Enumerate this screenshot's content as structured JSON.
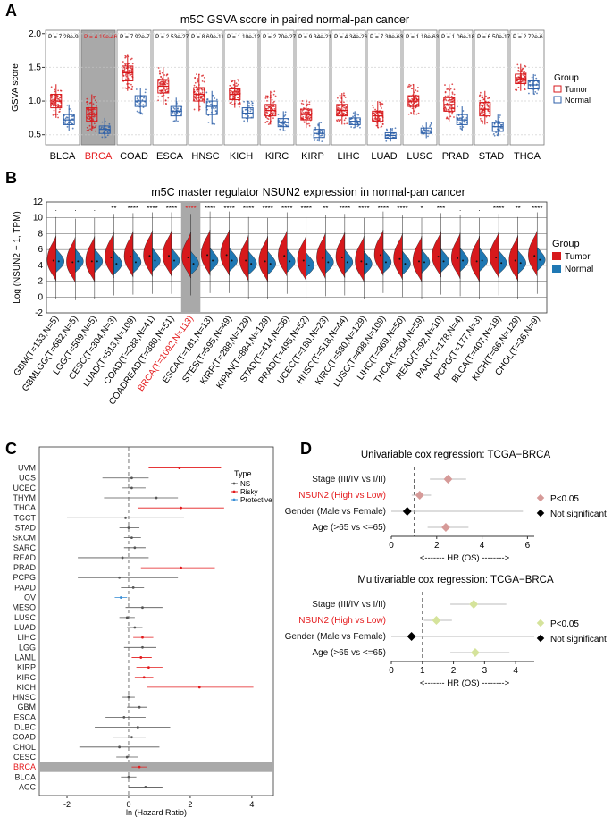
{
  "colors": {
    "tumor": "#d7191c",
    "normal": "#2c5fa8",
    "normal_fill": "#1f78b4",
    "highlight": "#a9a9a9",
    "risky": "#e31a1c",
    "protective": "#3b8fd6",
    "ns": "#555555",
    "sig": "#d69a98",
    "sig2": "#d5e39b",
    "notsig": "#000000",
    "red_text": "#e41a1c"
  },
  "panel_a": {
    "letter": "A",
    "title": "m5C GSVA score in paired normal-pan cancer",
    "ylabel": "GSVA score",
    "yticks": [
      "2.0",
      "1.5",
      "1.0",
      "0.5"
    ],
    "legend_title": "Group",
    "legend_items": [
      "Tumor",
      "Normal"
    ],
    "highlight": "BRCA",
    "groups": [
      {
        "label": "BLCA",
        "p": "P = 7.28e-9",
        "tumor": [
          0.75,
          0.9,
          1.0,
          1.1,
          1.25
        ],
        "normal": [
          0.55,
          0.65,
          0.72,
          0.8,
          0.95
        ]
      },
      {
        "label": "BRCA",
        "p": "P = 4.19e-46",
        "tumor": [
          0.55,
          0.7,
          0.8,
          0.9,
          1.1
        ],
        "normal": [
          0.45,
          0.52,
          0.58,
          0.63,
          0.75
        ]
      },
      {
        "label": "COAD",
        "p": "P = 7.92e-7",
        "tumor": [
          1.15,
          1.3,
          1.42,
          1.52,
          1.7
        ],
        "normal": [
          0.8,
          0.92,
          1.0,
          1.08,
          1.2
        ]
      },
      {
        "label": "ESCA",
        "p": "P = 2.53e-27",
        "tumor": [
          0.95,
          1.12,
          1.22,
          1.32,
          1.5
        ],
        "normal": [
          0.7,
          0.78,
          0.85,
          0.92,
          1.05
        ]
      },
      {
        "label": "HNSC",
        "p": "P = 8.69e-11",
        "tumor": [
          0.85,
          1.0,
          1.1,
          1.2,
          1.4
        ],
        "normal": [
          0.65,
          0.8,
          0.92,
          1.0,
          1.15
        ]
      },
      {
        "label": "KICH",
        "p": "P = 1.10e-12",
        "tumor": [
          0.9,
          1.02,
          1.1,
          1.18,
          1.32
        ],
        "normal": [
          0.68,
          0.75,
          0.82,
          0.9,
          1.0
        ]
      },
      {
        "label": "KIRC",
        "p": "P = 2.70e-27",
        "tumor": [
          0.65,
          0.78,
          0.86,
          0.95,
          1.15
        ],
        "normal": [
          0.55,
          0.62,
          0.68,
          0.74,
          0.85
        ]
      },
      {
        "label": "KIRP",
        "p": "P = 9.34e-21",
        "tumor": [
          0.6,
          0.72,
          0.8,
          0.88,
          1.02
        ],
        "normal": [
          0.4,
          0.46,
          0.52,
          0.58,
          0.68
        ]
      },
      {
        "label": "LIHC",
        "p": "P = 4.34e-26",
        "tumor": [
          0.65,
          0.78,
          0.86,
          0.95,
          1.12
        ],
        "normal": [
          0.6,
          0.65,
          0.7,
          0.75,
          0.85
        ]
      },
      {
        "label": "LUAD",
        "p": "P = 7.30e-63",
        "tumor": [
          0.6,
          0.7,
          0.78,
          0.85,
          1.0
        ],
        "normal": [
          0.4,
          0.45,
          0.49,
          0.53,
          0.6
        ]
      },
      {
        "label": "LUSC",
        "p": "P = 1.18e-63",
        "tumor": [
          0.8,
          0.92,
          1.0,
          1.08,
          1.25
        ],
        "normal": [
          0.45,
          0.52,
          0.56,
          0.6,
          0.68
        ]
      },
      {
        "label": "PRAD",
        "p": "P = 1.06e-18",
        "tumor": [
          0.7,
          0.85,
          0.95,
          1.05,
          1.25
        ],
        "normal": [
          0.55,
          0.65,
          0.72,
          0.8,
          0.92
        ]
      },
      {
        "label": "STAD",
        "p": "P = 6.50e-17",
        "tumor": [
          0.65,
          0.78,
          0.88,
          0.98,
          1.15
        ],
        "normal": [
          0.48,
          0.55,
          0.62,
          0.68,
          0.8
        ]
      },
      {
        "label": "THCA",
        "p": "P = 2.72e-6",
        "tumor": [
          1.15,
          1.26,
          1.33,
          1.4,
          1.55
        ],
        "normal": [
          1.1,
          1.18,
          1.24,
          1.3,
          1.4
        ]
      }
    ]
  },
  "panel_b": {
    "letter": "B",
    "title": "m5C master regulator NSUN2 expression in normal-pan cancer",
    "ylabel": "Log (NSUN2 + 1, TPM)",
    "yticks": [
      "12",
      "10",
      "8",
      "6",
      "4",
      "2",
      "0",
      "-2"
    ],
    "legend_title": "Group",
    "legend_items": [
      "Tumor",
      "Normal"
    ],
    "highlight": "BRCA(T=1092,N=113)",
    "groups": [
      {
        "label": "GBM(T=153,N=5)",
        "sig": ".",
        "t": 4.6,
        "n": 4.5
      },
      {
        "label": "GBMLGG(T=662,N=5)",
        "sig": ".",
        "t": 4.4,
        "n": 4.5
      },
      {
        "label": "LGG(T=509,N=5)",
        "sig": ".",
        "t": 4.5,
        "n": 4.5
      },
      {
        "label": "CESC(T=304,N=3)",
        "sig": "**",
        "t": 5.0,
        "n": 4.2
      },
      {
        "label": "LUAD(T=513,N=109)",
        "sig": "****",
        "t": 5.1,
        "n": 4.4
      },
      {
        "label": "COAD(T=288,N=41)",
        "sig": "****",
        "t": 5.2,
        "n": 4.6
      },
      {
        "label": "COADREAD(T=380,N=51)",
        "sig": "****",
        "t": 5.2,
        "n": 4.6
      },
      {
        "label": "BRCA(T=1092,N=113)",
        "sig": "****",
        "t": 5.0,
        "n": 4.2
      },
      {
        "label": "ESCA(T=181,N=13)",
        "sig": "****",
        "t": 5.3,
        "n": 4.6
      },
      {
        "label": "STES(T=595,N=49)",
        "sig": "****",
        "t": 5.3,
        "n": 4.6
      },
      {
        "label": "KIRP(T=288,N=129)",
        "sig": "****",
        "t": 4.6,
        "n": 4.2
      },
      {
        "label": "KIPAN(T=884,N=129)",
        "sig": "****",
        "t": 4.5,
        "n": 4.2
      },
      {
        "label": "STAD(T=414,N=36)",
        "sig": "****",
        "t": 5.2,
        "n": 4.5
      },
      {
        "label": "PRAD(T=495,N=52)",
        "sig": "****",
        "t": 4.6,
        "n": 4.0
      },
      {
        "label": "UCEC(T=180,N=23)",
        "sig": "**",
        "t": 4.9,
        "n": 4.4
      },
      {
        "label": "HNSC(T=518,N=44)",
        "sig": "****",
        "t": 5.0,
        "n": 4.4
      },
      {
        "label": "KIRC(T=530,N=129)",
        "sig": "****",
        "t": 4.5,
        "n": 4.2
      },
      {
        "label": "LUSC(T=498,N=109)",
        "sig": "****",
        "t": 5.3,
        "n": 4.4
      },
      {
        "label": "LIHC(T=369,N=50)",
        "sig": "****",
        "t": 4.8,
        "n": 4.2
      },
      {
        "label": "THCA(T=504,N=59)",
        "sig": "*",
        "t": 4.5,
        "n": 4.4
      },
      {
        "label": "READ(T=92,N=10)",
        "sig": "***",
        "t": 5.1,
        "n": 4.5
      },
      {
        "label": "PAAD(T=178,N=4)",
        "sig": ".",
        "t": 4.9,
        "n": 4.6
      },
      {
        "label": "PCPG(T=177,N=3)",
        "sig": ".",
        "t": 4.5,
        "n": 4.6
      },
      {
        "label": "BLCA(T=407,N=19)",
        "sig": "****",
        "t": 5.0,
        "n": 4.3
      },
      {
        "label": "KICH(T=66,N=129)",
        "sig": "**",
        "t": 4.6,
        "n": 4.3
      },
      {
        "label": "CHOL(T=36,N=9)",
        "sig": "****",
        "t": 5.2,
        "n": 4.7
      }
    ]
  },
  "panel_c": {
    "letter": "C",
    "title": "Association between NSUN2 Expression and OS",
    "xlabel": "ln (Hazard Ratio)",
    "xticks": [
      "-2",
      "0",
      "2",
      "4"
    ],
    "legend_title": "Type",
    "legend_items": [
      "NS",
      "Risky",
      "Protective"
    ],
    "highlight": "BRCA",
    "rows": [
      {
        "label": "UVM",
        "est": 1.65,
        "lo": 0.65,
        "hi": 3.0,
        "type": "Risky"
      },
      {
        "label": "UCS",
        "est": 0.1,
        "lo": -0.85,
        "hi": 0.65,
        "type": "NS"
      },
      {
        "label": "UCEC",
        "est": 0.1,
        "lo": -0.2,
        "hi": 0.55,
        "type": "NS"
      },
      {
        "label": "THYM",
        "est": 0.9,
        "lo": -0.8,
        "hi": 1.6,
        "type": "NS"
      },
      {
        "label": "THCA",
        "est": 1.7,
        "lo": 0.3,
        "hi": 3.1,
        "type": "Risky"
      },
      {
        "label": "TGCT",
        "est": -0.1,
        "lo": -2.0,
        "hi": 1.8,
        "type": "NS"
      },
      {
        "label": "STAD",
        "est": 0.0,
        "lo": -0.3,
        "hi": 0.35,
        "type": "NS"
      },
      {
        "label": "SKCM",
        "est": 0.1,
        "lo": -0.15,
        "hi": 0.4,
        "type": "NS"
      },
      {
        "label": "SARC",
        "est": 0.2,
        "lo": -0.15,
        "hi": 0.55,
        "type": "NS"
      },
      {
        "label": "READ",
        "est": -0.2,
        "lo": -1.65,
        "hi": 0.65,
        "type": "NS"
      },
      {
        "label": "PRAD",
        "est": 1.7,
        "lo": 0.4,
        "hi": 2.8,
        "type": "Risky"
      },
      {
        "label": "PCPG",
        "est": -0.3,
        "lo": -1.65,
        "hi": 1.6,
        "type": "NS"
      },
      {
        "label": "PAAD",
        "est": 0.15,
        "lo": -0.25,
        "hi": 0.5,
        "type": "NS"
      },
      {
        "label": "OV",
        "est": -0.25,
        "lo": -0.45,
        "hi": -0.05,
        "type": "Protective"
      },
      {
        "label": "MESO",
        "est": 0.45,
        "lo": -0.1,
        "hi": 1.1,
        "type": "NS"
      },
      {
        "label": "LUSC",
        "est": -0.05,
        "lo": -0.3,
        "hi": 0.2,
        "type": "NS"
      },
      {
        "label": "LUAD",
        "est": 0.2,
        "lo": -0.05,
        "hi": 0.45,
        "type": "NS"
      },
      {
        "label": "LIHC",
        "est": 0.45,
        "lo": 0.15,
        "hi": 0.8,
        "type": "Risky"
      },
      {
        "label": "LGG",
        "est": 0.45,
        "lo": -0.15,
        "hi": 0.9,
        "type": "NS"
      },
      {
        "label": "LAML",
        "est": 0.4,
        "lo": 0.1,
        "hi": 0.75,
        "type": "Risky"
      },
      {
        "label": "KIRP",
        "est": 0.65,
        "lo": 0.25,
        "hi": 1.1,
        "type": "Risky"
      },
      {
        "label": "KIRC",
        "est": 0.5,
        "lo": 0.2,
        "hi": 0.8,
        "type": "Risky"
      },
      {
        "label": "KICH",
        "est": 2.3,
        "lo": 0.6,
        "hi": 4.05,
        "type": "Risky"
      },
      {
        "label": "HNSC",
        "est": 0.0,
        "lo": -0.2,
        "hi": 0.2,
        "type": "NS"
      },
      {
        "label": "GBM",
        "est": 0.35,
        "lo": -0.05,
        "hi": 0.6,
        "type": "NS"
      },
      {
        "label": "ESCA",
        "est": -0.15,
        "lo": -0.75,
        "hi": 0.55,
        "type": "NS"
      },
      {
        "label": "DLBC",
        "est": 0.3,
        "lo": -1.1,
        "hi": 1.35,
        "type": "NS"
      },
      {
        "label": "COAD",
        "est": 0.1,
        "lo": -0.5,
        "hi": 0.55,
        "type": "NS"
      },
      {
        "label": "CHOL",
        "est": -0.3,
        "lo": -1.6,
        "hi": 1.0,
        "type": "NS"
      },
      {
        "label": "CESC",
        "est": -0.05,
        "lo": -0.4,
        "hi": 0.3,
        "type": "NS"
      },
      {
        "label": "BRCA",
        "est": 0.35,
        "lo": 0.1,
        "hi": 0.6,
        "type": "Risky"
      },
      {
        "label": "BLCA",
        "est": 0.0,
        "lo": -0.25,
        "hi": 0.25,
        "type": "NS"
      },
      {
        "label": "ACC",
        "est": 0.55,
        "lo": 0.0,
        "hi": 1.1,
        "type": "NS"
      }
    ]
  },
  "panel_d": {
    "letter": "D",
    "xlabel": "<------- HR (OS) -------->",
    "uni": {
      "title": "Univariable cox regression: TCGA−BRCA",
      "xticks": [
        "0",
        "2",
        "4",
        "6"
      ],
      "legend_items": [
        "P<0.05",
        "Not significant"
      ],
      "rows": [
        {
          "label": "Stage (III/IV vs I/II)",
          "est": 2.5,
          "lo": 1.7,
          "hi": 3.3,
          "sig": true
        },
        {
          "label": "NSUN2 (High vs Low)",
          "est": 1.25,
          "lo": 0.9,
          "hi": 1.75,
          "sig": true,
          "red": true
        },
        {
          "label": "Gender (Male vs Female)",
          "est": 0.7,
          "lo": 0.0,
          "hi": 5.8,
          "sig": false
        },
        {
          "label": "Age (>65 vs <=65)",
          "est": 2.4,
          "lo": 1.6,
          "hi": 3.4,
          "sig": true
        }
      ]
    },
    "multi": {
      "title": "Multivariable cox regression: TCGA−BRCA",
      "xticks": [
        "0",
        "1",
        "2",
        "3",
        "4"
      ],
      "legend_items": [
        "P<0.05",
        "Not significant"
      ],
      "rows": [
        {
          "label": "Stage (III/IV vs I/II)",
          "est": 2.65,
          "lo": 1.9,
          "hi": 3.7,
          "sig": true
        },
        {
          "label": "NSUN2 (High vs Low)",
          "est": 1.45,
          "lo": 1.05,
          "hi": 1.95,
          "sig": true,
          "red": true
        },
        {
          "label": "Gender (Male vs Female)",
          "est": 0.65,
          "lo": 0.0,
          "hi": 4.6,
          "sig": false
        },
        {
          "label": "Age (>65 vs <=65)",
          "est": 2.7,
          "lo": 1.9,
          "hi": 3.8,
          "sig": true
        }
      ]
    }
  }
}
